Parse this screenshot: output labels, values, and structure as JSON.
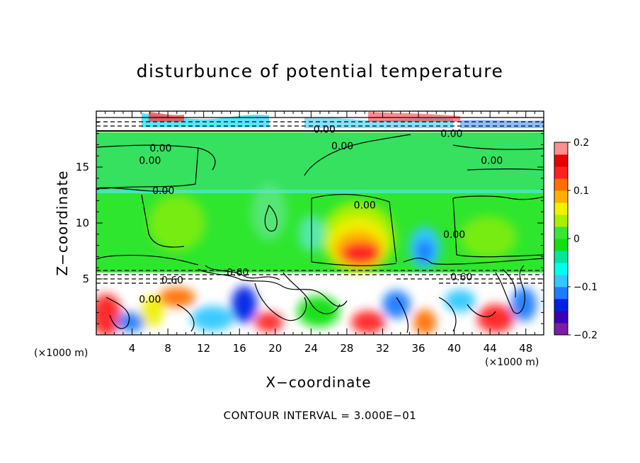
{
  "chart_data": {
    "type": "heatmap",
    "title": "disturbunce of potential temperature",
    "xlabel": "X−coordinate",
    "ylabel": "Z−coordinate",
    "x_unit": "(×1000 m)",
    "x_ticks": [
      4,
      8,
      12,
      16,
      20,
      24,
      28,
      32,
      36,
      40,
      44,
      48
    ],
    "y_ticks": [
      5,
      10,
      15
    ],
    "xlim": [
      0,
      50
    ],
    "ylim": [
      0,
      20
    ],
    "note": "CONTOUR INTERVAL = 3.000E−01",
    "colorbar": {
      "ticks": [
        "0.2",
        "0.1",
        "0",
        "−0.1",
        "−0.2"
      ],
      "tick_values": [
        0.2,
        0.1,
        0,
        -0.1,
        -0.2
      ],
      "range": [
        -0.2,
        0.2
      ],
      "colors": [
        "#7a1fa2",
        "#3b00b5",
        "#0020e6",
        "#1e7bff",
        "#33c8ff",
        "#00ffee",
        "#00e6a0",
        "#10e010",
        "#37e637",
        "#a8f000",
        "#f0f000",
        "#ffb000",
        "#ff7000",
        "#ff2020",
        "#e80000",
        "#ff8e8e"
      ]
    },
    "contour_labels": [
      {
        "text": "0.00",
        "x": 25.5,
        "z": 18.4
      },
      {
        "text": "0.00",
        "x": 39.7,
        "z": 18.0
      },
      {
        "text": "0.00",
        "x": 7.2,
        "z": 16.7
      },
      {
        "text": "0.00",
        "x": 6.0,
        "z": 15.6
      },
      {
        "text": "0.00",
        "x": 27.5,
        "z": 16.9
      },
      {
        "text": "0.00",
        "x": 44.2,
        "z": 15.6
      },
      {
        "text": "0.00",
        "x": 7.5,
        "z": 12.9
      },
      {
        "text": "0.00",
        "x": 30.0,
        "z": 11.6
      },
      {
        "text": "0.00",
        "x": 40.0,
        "z": 9.0
      },
      {
        "text": "0.60",
        "x": 8.5,
        "z": 4.9
      },
      {
        "text": "0.60",
        "x": 15.8,
        "z": 5.6
      },
      {
        "text": "0.60",
        "x": 40.8,
        "z": 5.2
      },
      {
        "text": "0.00",
        "x": 6.0,
        "z": 3.2
      }
    ],
    "features": [
      {
        "kind": "warm",
        "x": 30.0,
        "z": 7.2,
        "value": 0.17
      },
      {
        "kind": "warm",
        "x": 28.5,
        "z": 8.5,
        "value": 0.08
      },
      {
        "kind": "cold",
        "x": 36.0,
        "z": 7.5,
        "value": -0.06
      },
      {
        "kind": "cold",
        "x": 25.5,
        "z": 9.5,
        "value": -0.03
      },
      {
        "kind": "warm",
        "x": 10.0,
        "z": 10.8,
        "value": 0.04
      },
      {
        "kind": "warm",
        "x": 43.5,
        "z": 7.5,
        "value": 0.04
      }
    ]
  }
}
